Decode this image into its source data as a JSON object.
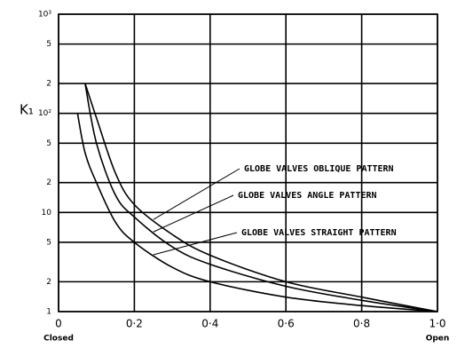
{
  "chart_data": {
    "type": "line",
    "y_label": "K₁",
    "x": [
      0.05,
      0.07,
      0.1,
      0.15,
      0.2,
      0.3,
      0.4,
      0.6,
      0.8,
      1.0
    ],
    "series": [
      {
        "name": "GLOBE VALVES OBLIQUE PATTERN",
        "color": "#000000",
        "values": [
          null,
          200,
          90,
          25,
          12,
          6,
          3.7,
          2,
          1.4,
          1
        ]
      },
      {
        "name": "GLOBE VALVES ANGLE PATTERN",
        "color": "#000000",
        "values": [
          null,
          200,
          50,
          15,
          9,
          4.5,
          3,
          1.8,
          1.3,
          1
        ]
      },
      {
        "name": "GLOBE VALVES STRAIGHT PATTERN",
        "color": "#000000",
        "values": [
          100,
          40,
          20,
          8,
          5,
          2.8,
          2,
          1.4,
          1.15,
          1
        ]
      }
    ],
    "xlim": [
      0,
      1.0
    ],
    "xticks": [
      0,
      {
        "value": 0.2,
        "label": "0·2"
      },
      {
        "value": 0.4,
        "label": "0·4"
      },
      {
        "value": 0.6,
        "label": "0·6"
      },
      {
        "value": 0.8,
        "label": "0·8"
      },
      {
        "value": 1.0,
        "label": "1·0"
      }
    ],
    "ylim": [
      1,
      1000
    ],
    "yscale": "log",
    "yticks": [
      1,
      2,
      5,
      10,
      {
        "value": 20,
        "label": "2"
      },
      {
        "value": 50,
        "label": "5"
      },
      {
        "value": 100,
        "label": "10²"
      },
      {
        "value": 200,
        "label": "2"
      },
      {
        "value": 500,
        "label": "5"
      },
      {
        "value": 1000,
        "label": "10³"
      }
    ],
    "x_end_labels": [
      "Closed",
      "Open"
    ],
    "grid": true
  }
}
